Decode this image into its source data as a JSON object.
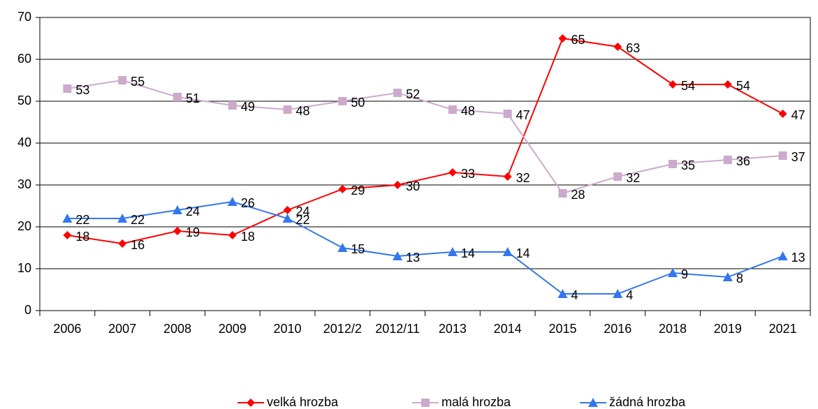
{
  "chart_data": {
    "type": "line",
    "categories": [
      "2006",
      "2007",
      "2008",
      "2009",
      "2010",
      "2012/2",
      "2012/11",
      "2013",
      "2014",
      "2015",
      "2016",
      "2018",
      "2019",
      "2021"
    ],
    "series": [
      {
        "name": "velká hrozba",
        "color": "#ff0000",
        "marker": "diamond",
        "values": [
          18,
          16,
          19,
          18,
          24,
          29,
          30,
          33,
          32,
          65,
          63,
          54,
          54,
          47
        ]
      },
      {
        "name": "malá hrozba",
        "color": "#ccaacc",
        "marker": "square",
        "values": [
          53,
          55,
          51,
          49,
          48,
          50,
          52,
          48,
          47,
          28,
          32,
          35,
          36,
          37
        ]
      },
      {
        "name": "žádná hrozba",
        "color": "#3377ee",
        "marker": "triangle",
        "values": [
          22,
          22,
          24,
          26,
          22,
          15,
          13,
          14,
          14,
          4,
          4,
          9,
          8,
          13
        ]
      }
    ],
    "ylim": [
      0,
      70
    ],
    "yticks": [
      0,
      10,
      20,
      30,
      40,
      50,
      60,
      70
    ],
    "grid": true,
    "legend": "bottom"
  }
}
